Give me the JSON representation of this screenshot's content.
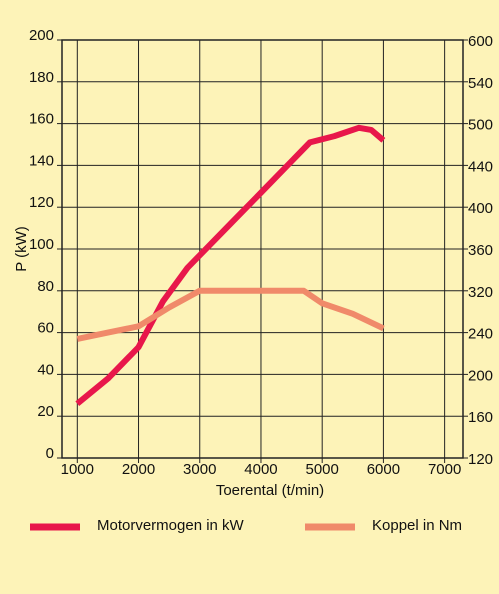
{
  "chart_data": {
    "type": "line",
    "x_label": "Toerental (t/min)",
    "y_label": "P (kW)",
    "xlim": [
      750,
      7300
    ],
    "xticks": [
      1000,
      2000,
      3000,
      4000,
      5000,
      6000,
      7000
    ],
    "ylim": [
      0,
      200
    ],
    "yticks": [
      0,
      20,
      40,
      60,
      80,
      100,
      120,
      140,
      160,
      180,
      200
    ],
    "y2lim": [
      120,
      600
    ],
    "y2ticks": [
      120,
      160,
      200,
      240,
      320,
      360,
      400,
      440,
      500,
      540,
      600
    ],
    "grid": true,
    "legend": "bottom",
    "series": [
      {
        "name": "Motorvermogen in kW",
        "color": "#e8174b",
        "x": [
          1000,
          1500,
          2000,
          2400,
          2800,
          3000,
          3500,
          4000,
          4500,
          4800,
          5200,
          5600,
          5800,
          6000
        ],
        "values": [
          26,
          38,
          53,
          75,
          91,
          97,
          112,
          127,
          142,
          151,
          154,
          158,
          157,
          152
        ]
      },
      {
        "name": "Koppel in Nm",
        "color": "#f08a6a",
        "axis": "y2",
        "x": [
          1000,
          1500,
          2000,
          2500,
          3000,
          3500,
          4000,
          4700,
          5000,
          5500,
          6000
        ],
        "values": [
          234,
          240,
          252,
          288,
          320,
          320,
          320,
          320,
          296,
          276,
          248
        ]
      }
    ]
  }
}
